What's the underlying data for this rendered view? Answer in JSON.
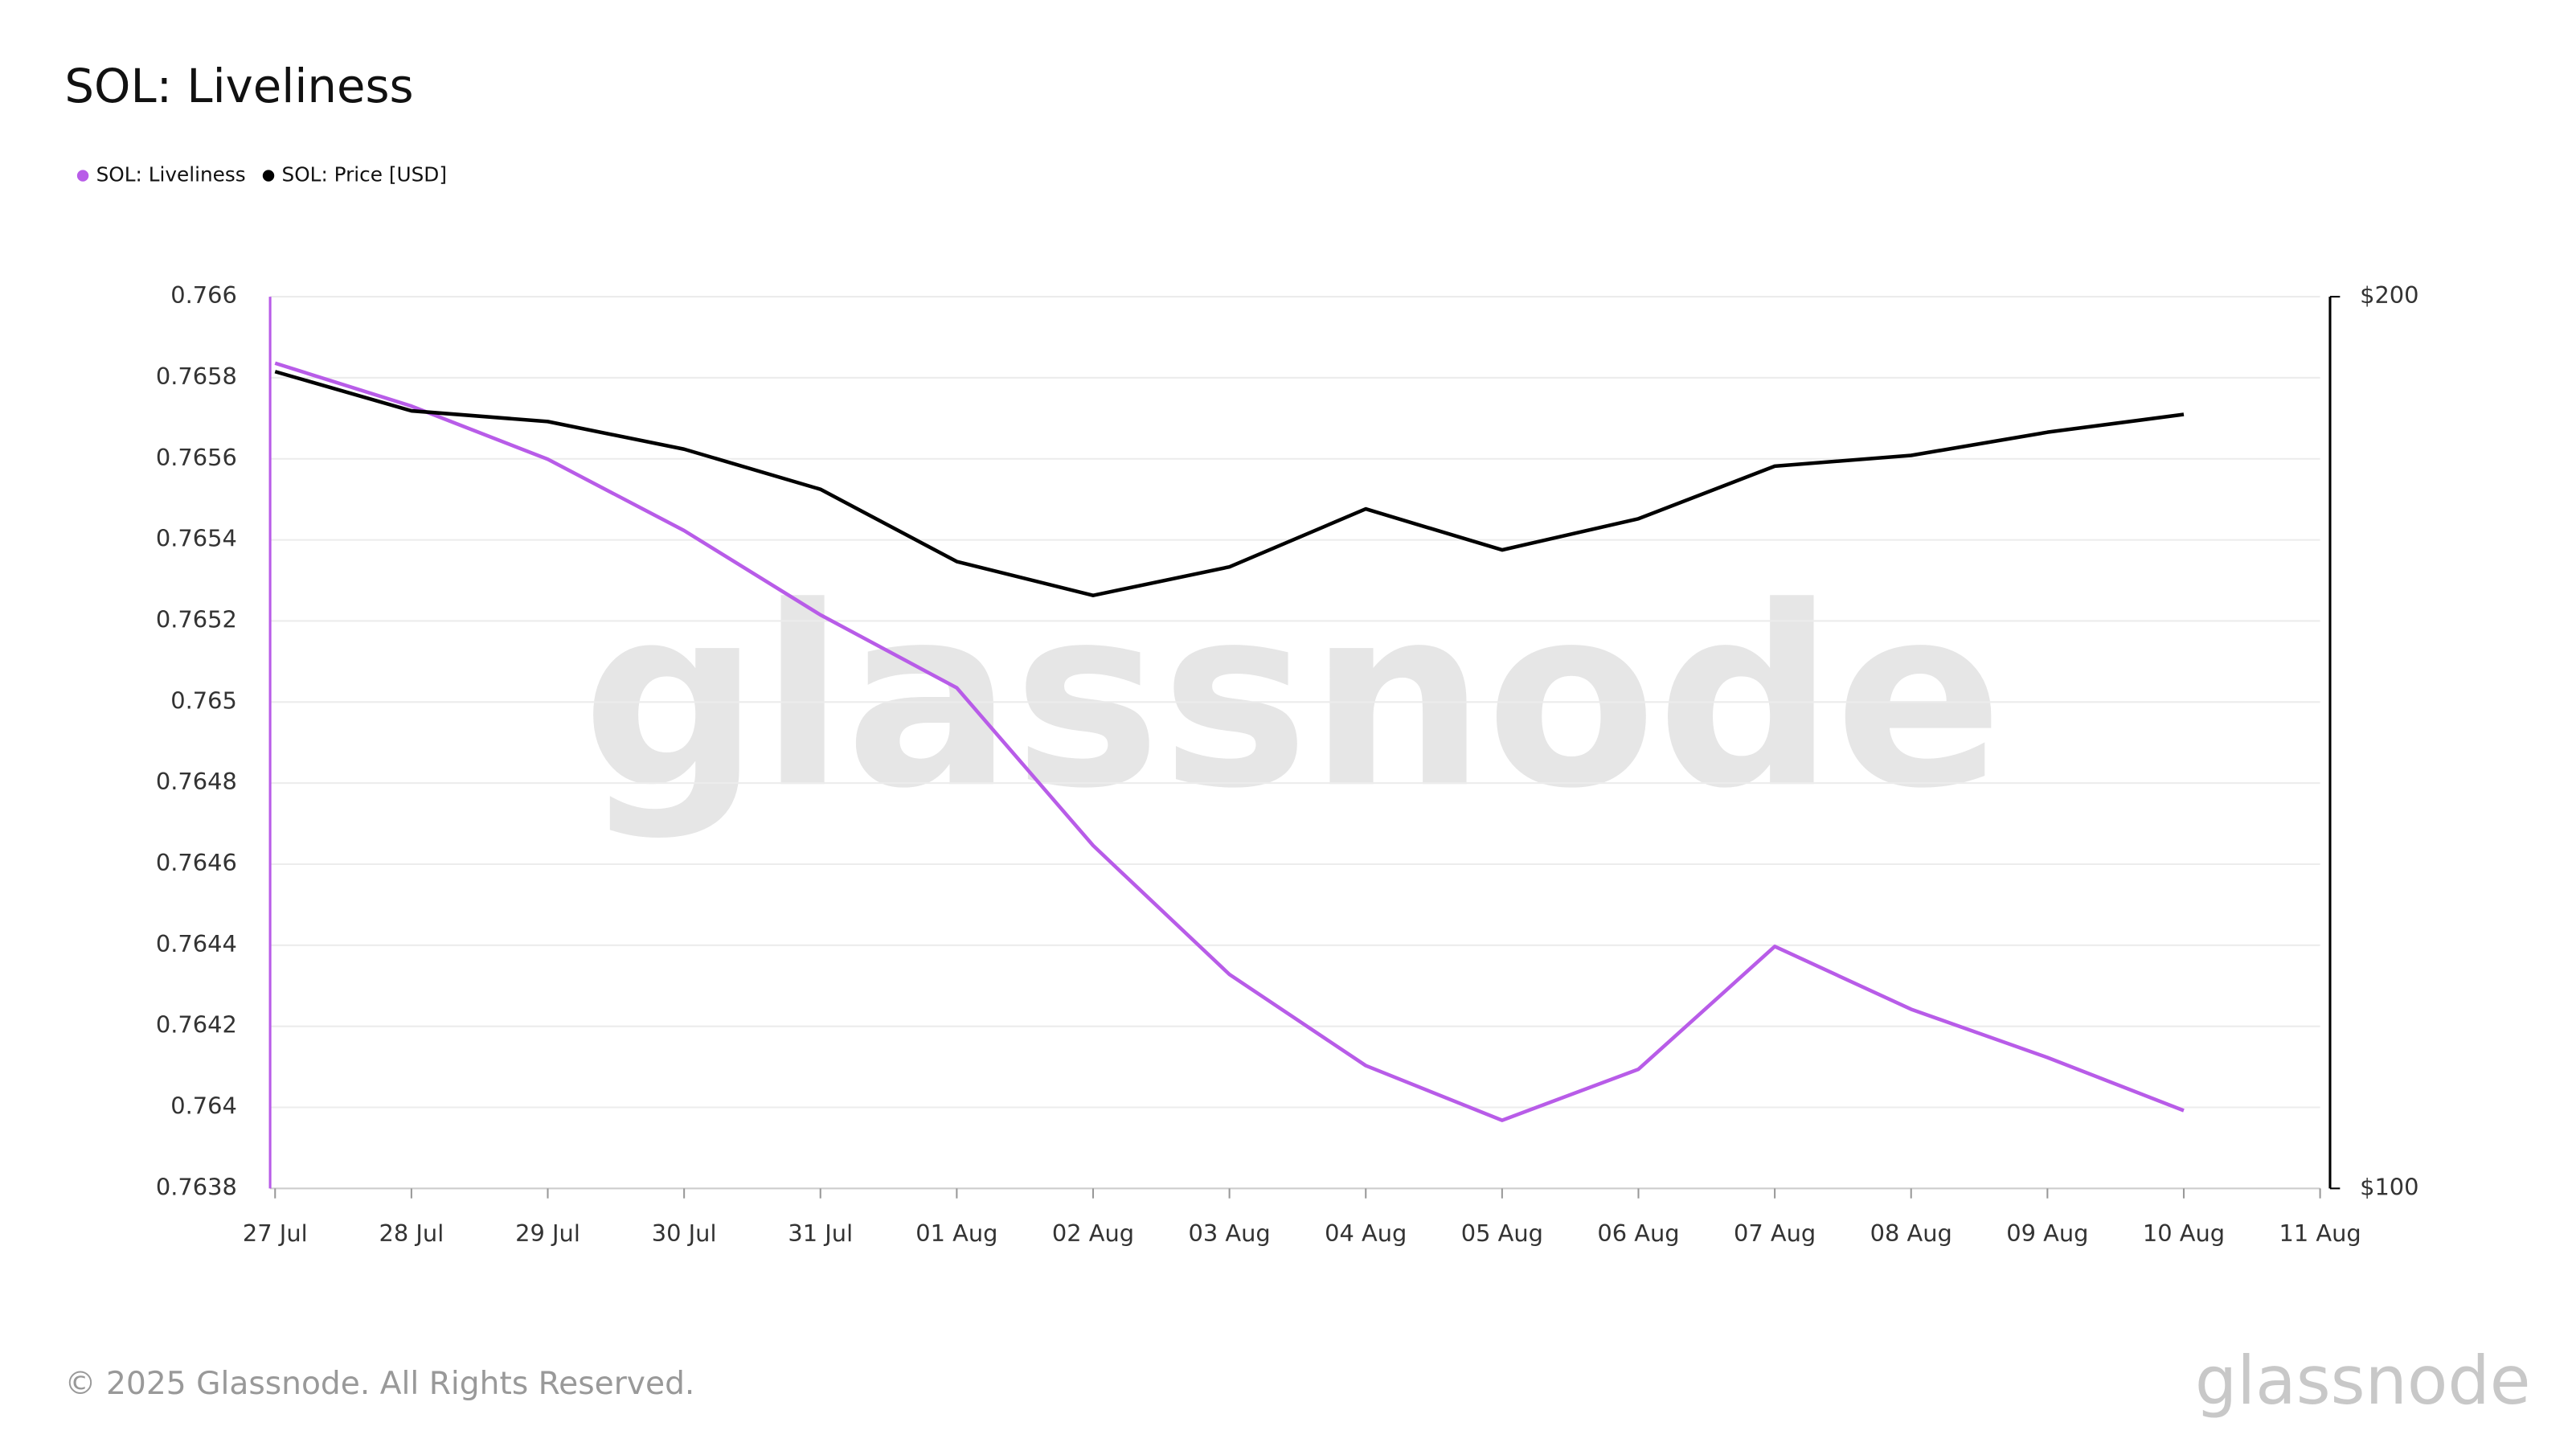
{
  "chart_data": {
    "type": "line",
    "title": "SOL: Liveliness",
    "categories": [
      "27 Jul",
      "28 Jul",
      "29 Jul",
      "30 Jul",
      "31 Jul",
      "01 Aug",
      "02 Aug",
      "03 Aug",
      "04 Aug",
      "05 Aug",
      "06 Aug",
      "07 Aug",
      "08 Aug",
      "09 Aug",
      "10 Aug",
      "11 Aug"
    ],
    "series": [
      {
        "name": "SOL: Liveliness",
        "color": "#b85ce8",
        "values": [
          0.765836,
          0.76573,
          0.765599,
          0.765423,
          0.765215,
          0.765035,
          0.764646,
          0.764328,
          0.764103,
          0.763968,
          0.764094,
          0.764397,
          0.764242,
          0.764123,
          0.763992,
          null
        ]
      },
      {
        "name": "SOL: Price [USD]",
        "color": "#000000",
        "axis": "y2",
        "values": [
          191.6,
          187.2,
          186.0,
          182.9,
          178.4,
          170.3,
          166.5,
          169.7,
          176.2,
          171.6,
          175.1,
          181.0,
          182.2,
          184.8,
          186.8,
          null
        ]
      }
    ],
    "ylim": [
      0.7638,
      0.766
    ],
    "yticks": [
      0.7638,
      0.764,
      0.7642,
      0.7644,
      0.7646,
      0.7648,
      0.765,
      0.7652,
      0.7654,
      0.7656,
      0.7658,
      0.766
    ],
    "y2lim": [
      100,
      200
    ],
    "y2ticks": [
      {
        "value": 100,
        "label": "$100"
      },
      {
        "value": 200,
        "label": "$200"
      }
    ],
    "grid": true,
    "legend": "top-left",
    "watermark": "glassnode",
    "footer": "© 2025 Glassnode. All Rights Reserved.",
    "logo": "glassnode"
  }
}
